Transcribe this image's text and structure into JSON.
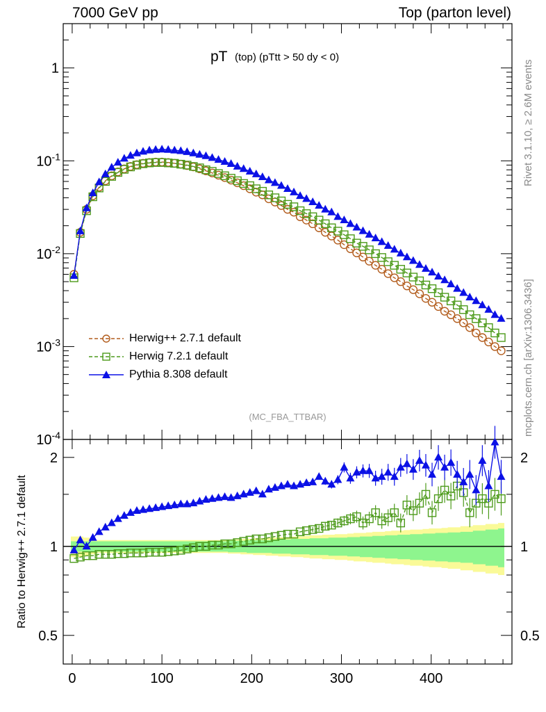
{
  "header": {
    "left": "7000 GeV pp",
    "right": "Top (parton level)"
  },
  "side_labels": {
    "rivet": "Rivet 3.1.10, ≥ 2.6M events",
    "mcplots": "mcplots.cern.ch [arXiv:1306.3436]"
  },
  "colors": {
    "herwig_pp": "#b25c1c",
    "herwig7": "#4c9a1a",
    "pythia": "#0b11e6",
    "band_inner": "#8ef58e",
    "band_outer": "#fafa98"
  },
  "chart_data": [
    {
      "type": "line",
      "title": "pT (top) (pTtt > 50 dy < 0)",
      "title_main": "pT",
      "title_sub": "(top)  (pTtt > 50 dy < 0)",
      "watermark": "(MC_FBA_TTBAR)",
      "xlim": [
        -10,
        490
      ],
      "ylim": [
        0.0001,
        3
      ],
      "log_y": true,
      "y_ticks": [
        "1",
        "10^-1",
        "10^-2",
        "10^-3",
        "10^-4"
      ],
      "legend_placement": "lower-left",
      "x": [
        2,
        9,
        16,
        23,
        30,
        37,
        44,
        51,
        58,
        65,
        72,
        79,
        86,
        93,
        100,
        107,
        114,
        121,
        128,
        135,
        142,
        149,
        156,
        163,
        170,
        177,
        184,
        191,
        198,
        205,
        212,
        219,
        226,
        233,
        240,
        247,
        254,
        261,
        268,
        275,
        282,
        289,
        296,
        303,
        310,
        317,
        324,
        331,
        338,
        345,
        352,
        359,
        366,
        373,
        380,
        387,
        394,
        401,
        408,
        415,
        422,
        429,
        436,
        443,
        450,
        457,
        464,
        471,
        478
      ],
      "series": [
        {
          "name": "Herwig++ 2.7.1 default",
          "values": [
            0.006,
            0.017,
            0.03,
            0.042,
            0.052,
            0.061,
            0.069,
            0.076,
            0.082,
            0.087,
            0.091,
            0.094,
            0.096,
            0.097,
            0.097,
            0.096,
            0.094,
            0.092,
            0.089,
            0.086,
            0.082,
            0.078,
            0.074,
            0.07,
            0.066,
            0.062,
            0.058,
            0.054,
            0.05,
            0.046,
            0.043,
            0.039,
            0.036,
            0.033,
            0.03,
            0.028,
            0.025,
            0.023,
            0.021,
            0.019,
            0.017,
            0.0155,
            0.014,
            0.0125,
            0.0113,
            0.0102,
            0.0092,
            0.0083,
            0.0075,
            0.0068,
            0.0061,
            0.0055,
            0.005,
            0.0045,
            0.0041,
            0.0037,
            0.0033,
            0.003,
            0.0027,
            0.0024,
            0.0022,
            0.002,
            0.0018,
            0.0016,
            0.0014,
            0.00125,
            0.00112,
            0.001,
            0.0009
          ]
        },
        {
          "name": "Herwig 7.2.1 default",
          "values": [
            0.0055,
            0.0165,
            0.029,
            0.041,
            0.051,
            0.06,
            0.068,
            0.075,
            0.081,
            0.086,
            0.09,
            0.093,
            0.095,
            0.096,
            0.096,
            0.095,
            0.094,
            0.092,
            0.09,
            0.087,
            0.084,
            0.08,
            0.077,
            0.073,
            0.069,
            0.065,
            0.061,
            0.057,
            0.054,
            0.05,
            0.047,
            0.043,
            0.04,
            0.037,
            0.034,
            0.032,
            0.029,
            0.027,
            0.025,
            0.023,
            0.021,
            0.019,
            0.0175,
            0.016,
            0.0145,
            0.013,
            0.012,
            0.011,
            0.01,
            0.0091,
            0.0082,
            0.0075,
            0.0068,
            0.0062,
            0.0056,
            0.0051,
            0.0046,
            0.0042,
            0.0038,
            0.0034,
            0.0031,
            0.0028,
            0.0025,
            0.0022,
            0.002,
            0.0018,
            0.0016,
            0.0014,
            0.00125
          ]
        },
        {
          "name": "Pythia 8.308 default",
          "values": [
            0.0058,
            0.0175,
            0.031,
            0.045,
            0.059,
            0.072,
            0.085,
            0.096,
            0.106,
            0.114,
            0.121,
            0.126,
            0.13,
            0.132,
            0.133,
            0.132,
            0.13,
            0.128,
            0.125,
            0.121,
            0.117,
            0.113,
            0.108,
            0.103,
            0.098,
            0.093,
            0.087,
            0.082,
            0.077,
            0.072,
            0.067,
            0.062,
            0.058,
            0.054,
            0.05,
            0.046,
            0.042,
            0.039,
            0.036,
            0.033,
            0.03,
            0.028,
            0.025,
            0.023,
            0.021,
            0.0192,
            0.0176,
            0.0161,
            0.0147,
            0.0134,
            0.0122,
            0.0111,
            0.0101,
            0.0092,
            0.0084,
            0.0076,
            0.0069,
            0.0063,
            0.0057,
            0.0052,
            0.0047,
            0.0042,
            0.0038,
            0.0034,
            0.0031,
            0.0028,
            0.0025,
            0.0022,
            0.002
          ]
        }
      ]
    },
    {
      "type": "line",
      "ylabel": "Ratio to Herwig++ 2.7.1 default",
      "xlim": [
        -10,
        490
      ],
      "ylim": [
        0.4,
        2.3
      ],
      "log_y": true,
      "x_ticks": [
        "0",
        "100",
        "200",
        "300",
        "400"
      ],
      "y_ticks": [
        "2",
        "1",
        "0.5"
      ],
      "x": [
        2,
        9,
        16,
        23,
        30,
        37,
        44,
        51,
        58,
        65,
        72,
        79,
        86,
        93,
        100,
        107,
        114,
        121,
        128,
        135,
        142,
        149,
        156,
        163,
        170,
        177,
        184,
        191,
        198,
        205,
        212,
        219,
        226,
        233,
        240,
        247,
        254,
        261,
        268,
        275,
        282,
        289,
        296,
        303,
        310,
        317,
        324,
        331,
        338,
        345,
        352,
        359,
        366,
        373,
        380,
        387,
        394,
        401,
        408,
        415,
        422,
        429,
        436,
        443,
        450,
        457,
        464,
        471,
        478
      ],
      "series": [
        {
          "name": "Herwig 7.2.1 default",
          "values": [
            0.91,
            0.92,
            0.93,
            0.93,
            0.94,
            0.94,
            0.94,
            0.945,
            0.945,
            0.95,
            0.95,
            0.95,
            0.955,
            0.955,
            0.955,
            0.96,
            0.965,
            0.97,
            0.98,
            0.99,
            1.0,
            1.0,
            1.01,
            1.01,
            1.02,
            1.02,
            1.03,
            1.04,
            1.05,
            1.06,
            1.06,
            1.07,
            1.08,
            1.09,
            1.1,
            1.1,
            1.12,
            1.13,
            1.14,
            1.15,
            1.17,
            1.18,
            1.2,
            1.22,
            1.24,
            1.26,
            1.2,
            1.24,
            1.3,
            1.22,
            1.25,
            1.3,
            1.2,
            1.38,
            1.32,
            1.4,
            1.5,
            1.3,
            1.45,
            1.55,
            1.48,
            1.6,
            1.52,
            1.3,
            1.4,
            1.45,
            1.4,
            1.5,
            1.45
          ]
        },
        {
          "name": "Pythia 8.308 default",
          "values": [
            0.97,
            1.05,
            1.0,
            1.07,
            1.12,
            1.16,
            1.2,
            1.24,
            1.27,
            1.3,
            1.32,
            1.33,
            1.34,
            1.35,
            1.36,
            1.37,
            1.38,
            1.39,
            1.39,
            1.4,
            1.42,
            1.44,
            1.45,
            1.46,
            1.47,
            1.46,
            1.48,
            1.5,
            1.52,
            1.54,
            1.5,
            1.56,
            1.58,
            1.6,
            1.62,
            1.6,
            1.62,
            1.64,
            1.65,
            1.72,
            1.66,
            1.62,
            1.68,
            1.85,
            1.7,
            1.78,
            1.8,
            1.8,
            1.7,
            1.72,
            1.78,
            1.72,
            1.85,
            1.9,
            1.82,
            1.95,
            1.88,
            1.75,
            2.0,
            1.85,
            1.92,
            1.75,
            1.65,
            1.75,
            1.55,
            1.95,
            1.6,
            2.25,
            1.72
          ]
        }
      ],
      "band_inner": [
        0.04,
        0.04,
        0.04,
        0.04,
        0.04,
        0.04,
        0.04,
        0.04,
        0.04,
        0.04,
        0.04,
        0.04,
        0.04,
        0.04,
        0.04,
        0.04,
        0.04,
        0.04,
        0.04,
        0.04,
        0.04,
        0.04,
        0.04,
        0.04,
        0.04,
        0.045,
        0.045,
        0.045,
        0.05,
        0.05,
        0.05,
        0.05,
        0.055,
        0.055,
        0.055,
        0.06,
        0.06,
        0.06,
        0.065,
        0.065,
        0.065,
        0.07,
        0.07,
        0.07,
        0.075,
        0.075,
        0.08,
        0.08,
        0.085,
        0.085,
        0.09,
        0.09,
        0.095,
        0.095,
        0.1,
        0.1,
        0.105,
        0.105,
        0.11,
        0.11,
        0.115,
        0.115,
        0.12,
        0.12,
        0.13,
        0.13,
        0.14,
        0.14,
        0.15
      ],
      "band_outer": [
        0.08,
        0.08,
        0.07,
        0.06,
        0.05,
        0.05,
        0.05,
        0.05,
        0.05,
        0.05,
        0.05,
        0.05,
        0.05,
        0.05,
        0.05,
        0.05,
        0.05,
        0.05,
        0.05,
        0.05,
        0.05,
        0.05,
        0.05,
        0.05,
        0.05,
        0.055,
        0.055,
        0.06,
        0.06,
        0.065,
        0.065,
        0.07,
        0.07,
        0.075,
        0.075,
        0.08,
        0.08,
        0.085,
        0.09,
        0.09,
        0.095,
        0.095,
        0.1,
        0.1,
        0.105,
        0.11,
        0.11,
        0.115,
        0.12,
        0.12,
        0.125,
        0.13,
        0.13,
        0.135,
        0.14,
        0.14,
        0.145,
        0.15,
        0.15,
        0.155,
        0.16,
        0.16,
        0.17,
        0.17,
        0.18,
        0.18,
        0.19,
        0.19,
        0.2
      ]
    }
  ],
  "legend": [
    {
      "label": "Herwig++ 2.7.1 default"
    },
    {
      "label": "Herwig 7.2.1 default"
    },
    {
      "label": "Pythia 8.308 default"
    }
  ]
}
